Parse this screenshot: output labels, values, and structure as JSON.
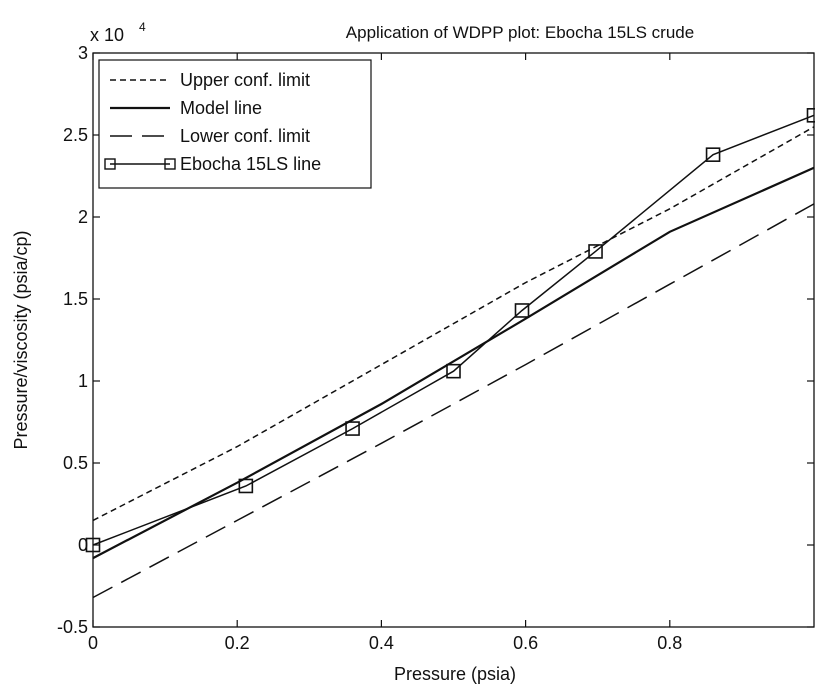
{
  "chart_data": {
    "type": "line",
    "title": "Application of WDPP plot: Ebocha 15LS crude",
    "xlabel": "Pressure (psia)",
    "ylabel": "Pressure/viscosity (psia/cp)",
    "y_multiplier_label": "x 10",
    "y_multiplier_exponent": "4",
    "xlim": [
      0,
      1
    ],
    "ylim": [
      -0.5,
      3
    ],
    "x_ticks": [
      0,
      0.2,
      0.4,
      0.6,
      0.8
    ],
    "x_tick_labels": [
      "0",
      "0.2",
      "0.4",
      "0.6",
      "0.8"
    ],
    "y_ticks": [
      -0.5,
      0,
      0.5,
      1,
      1.5,
      2,
      2.5,
      3
    ],
    "y_tick_labels": [
      "-0.5",
      "0",
      "0.5",
      "1",
      "1.5",
      "2",
      "2.5",
      "3"
    ],
    "grid": false,
    "legend_position": "top-left",
    "series": [
      {
        "name": "Upper conf. limit",
        "style": "dotted",
        "color": "#111111",
        "x": [
          0,
          0.2,
          0.4,
          0.6,
          0.8,
          1.0
        ],
        "y": [
          0.15,
          0.6,
          1.1,
          1.6,
          2.05,
          2.55
        ]
      },
      {
        "name": "Model line",
        "style": "solid",
        "color": "#111111",
        "x": [
          0,
          0.2,
          0.4,
          0.6,
          0.8,
          1.0
        ],
        "y": [
          -0.08,
          0.38,
          0.86,
          1.38,
          1.91,
          2.3
        ]
      },
      {
        "name": "Lower conf. limit",
        "style": "dashed",
        "color": "#111111",
        "x": [
          0,
          0.2,
          0.4,
          0.6,
          0.8,
          1.0
        ],
        "y": [
          -0.32,
          0.15,
          0.62,
          1.1,
          1.59,
          2.08
        ]
      },
      {
        "name": "Ebocha 15LS line",
        "style": "solid-square-markers",
        "color": "#111111",
        "x": [
          0,
          0.212,
          0.36,
          0.5,
          0.595,
          0.697,
          0.86,
          1.0
        ],
        "y": [
          0,
          0.36,
          0.71,
          1.06,
          1.43,
          1.79,
          2.38,
          2.62
        ]
      }
    ]
  }
}
